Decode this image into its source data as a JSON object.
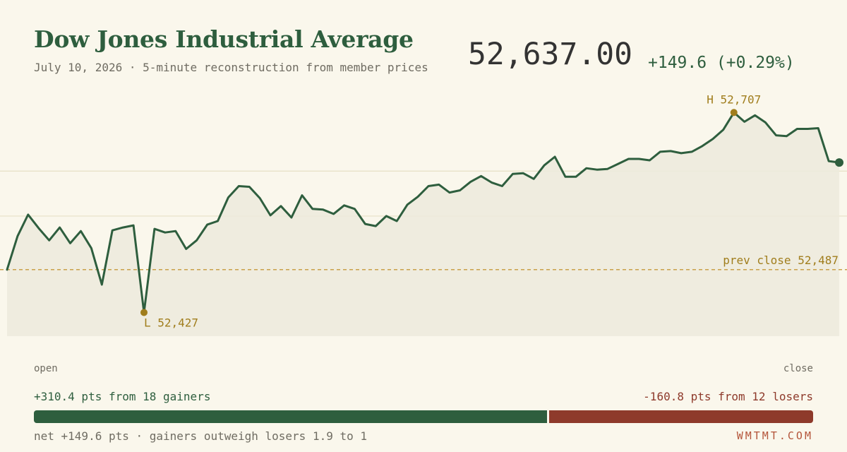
{
  "header": {
    "title": "Dow Jones Industrial Average",
    "subtitle": "July 10, 2026 · 5-minute reconstruction from member prices",
    "price": "52,637.00",
    "change": "+149.6 (+0.29%)"
  },
  "colors": {
    "line": "#2e5e3e",
    "fill": "#eceadd",
    "marker": "#a07d1c",
    "prev_close": "#c9a14a",
    "gainers": "#2e5e3e",
    "losers": "#8e3a2b"
  },
  "chart_data": {
    "type": "line",
    "x_start_label": "open",
    "x_end_label": "close",
    "ylim": [
      52380,
      52732
    ],
    "gridlines": [
      52625,
      52562
    ],
    "prev_close": {
      "value": 52487,
      "label": "prev close 52,487"
    },
    "low": {
      "index": 13,
      "value": 52427,
      "label": "L 52,427"
    },
    "high": {
      "index": 69,
      "value": 52707,
      "label": "H 52,707"
    },
    "close_value": 52637,
    "values": [
      52487,
      52534,
      52564,
      52545,
      52528,
      52546,
      52524,
      52541,
      52517,
      52466,
      52542,
      52546,
      52549,
      52427,
      52544,
      52539,
      52541,
      52516,
      52528,
      52550,
      52555,
      52588,
      52604,
      52603,
      52587,
      52563,
      52576,
      52560,
      52591,
      52572,
      52571,
      52565,
      52577,
      52572,
      52551,
      52548,
      52562,
      52555,
      52578,
      52589,
      52604,
      52606,
      52595,
      52598,
      52610,
      52618,
      52609,
      52604,
      52621,
      52622,
      52614,
      52633,
      52645,
      52617,
      52617,
      52629,
      52627,
      52628,
      52635,
      52642,
      52642,
      52640,
      52652,
      52653,
      52650,
      52652,
      52660,
      52670,
      52683,
      52707,
      52694,
      52703,
      52693,
      52675,
      52674,
      52684,
      52684,
      52685,
      52639,
      52637
    ]
  },
  "breadth": {
    "gainers_text": "+310.4 pts from 18 gainers",
    "losers_text": "-160.8 pts from 12 losers",
    "gainers_pts": 310.4,
    "losers_pts": 160.8,
    "net_text": "net +149.6 pts · gainers outweigh losers 1.9 to 1"
  },
  "brand": "WMTMT.COM"
}
